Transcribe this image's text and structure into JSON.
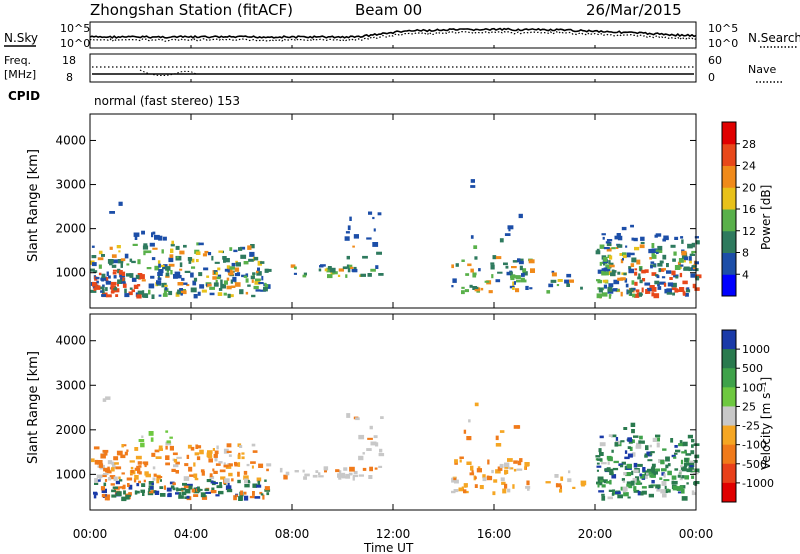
{
  "header": {
    "station": "Zhongshan Station (fitACF)",
    "beam": "Beam 00",
    "date": "26/Mar/2015"
  },
  "top_panel": {
    "left_label": "N.Sky",
    "right_label": "N.Search",
    "left_ticks": [
      "10^5",
      "10^0"
    ],
    "right_ticks": [
      "10^5",
      "10^0"
    ]
  },
  "freq_panel": {
    "left_label_1": "Freq.",
    "left_label_2": "[MHz]",
    "right_label": "Nave",
    "left_ticks": [
      "18",
      "8"
    ],
    "right_ticks": [
      "60",
      "0"
    ]
  },
  "cpid": {
    "label": "CPID",
    "text": "normal (fast stereo) 153"
  },
  "chart_data": [
    {
      "type": "heatmap",
      "name": "power",
      "ylabel": "Slant Range [km]",
      "yticks": [
        1000,
        2000,
        3000,
        4000
      ],
      "ylim": [
        200,
        4600
      ],
      "xlim": [
        0,
        24
      ],
      "colorbar": {
        "label": "Power [dB]",
        "ticks": [
          "4",
          "8",
          "12",
          "16",
          "20",
          "24",
          "28"
        ],
        "colors": [
          "#0000ff",
          "#1c4ea8",
          "#2e7a5e",
          "#59b04a",
          "#e8c11a",
          "#f08a1a",
          "#e8481a",
          "#e00000"
        ]
      }
    },
    {
      "type": "heatmap",
      "name": "velocity",
      "ylabel": "Slant Range [km]",
      "yticks": [
        1000,
        2000,
        3000,
        4000
      ],
      "ylim": [
        200,
        4600
      ],
      "xlim": [
        0,
        24
      ],
      "colorbar": {
        "label": "Velocity [m s⁻¹]",
        "ticks": [
          "1000",
          "500",
          "100",
          "25",
          "-25",
          "-100",
          "-500",
          "-1000"
        ],
        "colors": [
          "#1a3aa8",
          "#2a7a4e",
          "#3fa24a",
          "#6ec840",
          "#c8c8c8",
          "#f5a623",
          "#f07a1a",
          "#e8401a",
          "#e00000"
        ]
      }
    }
  ],
  "xaxis": {
    "label": "Time UT",
    "ticks": [
      "00:00",
      "04:00",
      "08:00",
      "12:00",
      "16:00",
      "20:00",
      "00:00"
    ]
  },
  "colors": {
    "axis": "#000000",
    "grey_scatter": "#c8c8c8",
    "gridline": "#ff3b3b"
  }
}
